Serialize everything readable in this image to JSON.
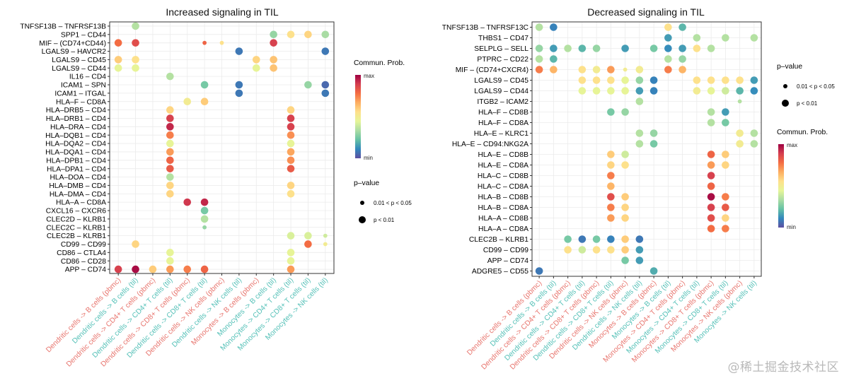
{
  "watermark": "@稀土掘金技术社区",
  "chart_data": [
    {
      "type": "dot",
      "title": "Increased signaling in TIL",
      "x_categories": [
        {
          "label": "Dendritic cells -> B cells (pbmc)",
          "group": "pbmc"
        },
        {
          "label": "Dendritic cells -> B cells (til)",
          "group": "til"
        },
        {
          "label": "Dendritic cells -> CD4+ T cells (pbmc)",
          "group": "pbmc"
        },
        {
          "label": "Dendritic cells -> CD4+ T cells (til)",
          "group": "til"
        },
        {
          "label": "Dendritic cells -> CD8+ T cells (pbmc)",
          "group": "pbmc"
        },
        {
          "label": "Dendritic cells -> CD8+ T cells (til)",
          "group": "til"
        },
        {
          "label": "Dendritic cells -> NK cells (pbmc)",
          "group": "pbmc"
        },
        {
          "label": "Dendritic cells -> NK cells (til)",
          "group": "til"
        },
        {
          "label": "Monocytes -> B cells (pbmc)",
          "group": "pbmc"
        },
        {
          "label": "Monocytes -> B cells (til)",
          "group": "til"
        },
        {
          "label": "Monocytes -> CD4+ T cells (til)",
          "group": "til"
        },
        {
          "label": "Monocytes -> CD8+ T cells (til)",
          "group": "til"
        },
        {
          "label": "Monocytes -> NK cells (til)",
          "group": "til"
        }
      ],
      "y_categories": [
        "TNFSF13B – TNFRSF13B",
        "SPP1 – CD44",
        "MIF – (CD74+CD44)",
        "LGALS9 – HAVCR2",
        "LGALS9 – CD45",
        "LGALS9 – CD44",
        "IL16 – CD4",
        "ICAM1 – SPN",
        "ICAM1 – ITGAL",
        "HLA–F – CD8A",
        "HLA–DRB5 – CD4",
        "HLA–DRB1 – CD4",
        "HLA–DRA – CD4",
        "HLA–DQB1 – CD4",
        "HLA–DQA2 – CD4",
        "HLA–DQA1 – CD4",
        "HLA–DPB1 – CD4",
        "HLA–DPA1 – CD4",
        "HLA–DOA – CD4",
        "HLA–DMB – CD4",
        "HLA–DMA – CD4",
        "HLA–A – CD8A",
        "CXCL16 – CXCR6",
        "CLEC2D – KLRB1",
        "CLEC2C – KLRB1",
        "CLEC2B – KLRB1",
        "CD99 – CD99",
        "CD86 – CTLA4",
        "CD86 – CD28",
        "APP – CD74"
      ],
      "points": [
        [
          0,
          1,
          0.35,
          1
        ],
        [
          1,
          9,
          0.3,
          1
        ],
        [
          1,
          10,
          0.55,
          1
        ],
        [
          1,
          11,
          0.58,
          1
        ],
        [
          1,
          12,
          0.33,
          1
        ],
        [
          2,
          0,
          0.78,
          1
        ],
        [
          2,
          1,
          0.85,
          1
        ],
        [
          2,
          5,
          0.8,
          0
        ],
        [
          2,
          6,
          0.55,
          0
        ],
        [
          2,
          9,
          0.88,
          1
        ],
        [
          3,
          7,
          0.08,
          1
        ],
        [
          3,
          12,
          0.08,
          1
        ],
        [
          4,
          0,
          0.6,
          1
        ],
        [
          4,
          1,
          0.55,
          1
        ],
        [
          4,
          8,
          0.58,
          1
        ],
        [
          4,
          9,
          0.62,
          1
        ],
        [
          5,
          0,
          0.45,
          1
        ],
        [
          5,
          1,
          0.45,
          1
        ],
        [
          5,
          8,
          0.45,
          1
        ],
        [
          5,
          9,
          0.62,
          1
        ],
        [
          6,
          3,
          0.35,
          1
        ],
        [
          7,
          5,
          0.25,
          1
        ],
        [
          7,
          7,
          0.08,
          1
        ],
        [
          7,
          11,
          0.3,
          1
        ],
        [
          7,
          12,
          0.05,
          1
        ],
        [
          8,
          7,
          0.08,
          1
        ],
        [
          8,
          12,
          0.08,
          1
        ],
        [
          9,
          4,
          0.5,
          1
        ],
        [
          9,
          5,
          0.6,
          1
        ],
        [
          10,
          3,
          0.58,
          1
        ],
        [
          10,
          10,
          0.58,
          1
        ],
        [
          11,
          3,
          0.88,
          1
        ],
        [
          11,
          10,
          0.88,
          1
        ],
        [
          12,
          3,
          0.93,
          1
        ],
        [
          12,
          10,
          0.88,
          1
        ],
        [
          13,
          3,
          0.75,
          1
        ],
        [
          13,
          10,
          0.72,
          1
        ],
        [
          14,
          3,
          0.45,
          1
        ],
        [
          14,
          10,
          0.45,
          1
        ],
        [
          15,
          3,
          0.7,
          1
        ],
        [
          15,
          10,
          0.68,
          1
        ],
        [
          16,
          3,
          0.8,
          1
        ],
        [
          16,
          10,
          0.72,
          1
        ],
        [
          17,
          3,
          0.82,
          1
        ],
        [
          17,
          10,
          0.82,
          1
        ],
        [
          18,
          3,
          0.35,
          1
        ],
        [
          19,
          3,
          0.58,
          1
        ],
        [
          19,
          10,
          0.58,
          1
        ],
        [
          20,
          3,
          0.58,
          1
        ],
        [
          20,
          10,
          0.55,
          1
        ],
        [
          21,
          4,
          0.9,
          1
        ],
        [
          21,
          5,
          0.93,
          1
        ],
        [
          22,
          5,
          0.25,
          1
        ],
        [
          23,
          5,
          0.35,
          1
        ],
        [
          24,
          5,
          0.3,
          0
        ],
        [
          25,
          10,
          0.42,
          1
        ],
        [
          25,
          11,
          0.42,
          1
        ],
        [
          25,
          12,
          0.4,
          0
        ],
        [
          26,
          1,
          0.58,
          1
        ],
        [
          26,
          11,
          0.78,
          1
        ],
        [
          26,
          12,
          0.5,
          0
        ],
        [
          27,
          3,
          0.45,
          1
        ],
        [
          27,
          10,
          0.45,
          1
        ],
        [
          28,
          3,
          0.45,
          1
        ],
        [
          28,
          10,
          0.45,
          1
        ],
        [
          29,
          0,
          0.88,
          1
        ],
        [
          29,
          1,
          0.98,
          1
        ],
        [
          29,
          2,
          0.6,
          1
        ],
        [
          29,
          3,
          0.7,
          1
        ],
        [
          29,
          4,
          0.75,
          1
        ],
        [
          29,
          5,
          0.8,
          1
        ],
        [
          29,
          10,
          0.7,
          1
        ]
      ],
      "legend_color": {
        "title": "Commun. Prob.",
        "max": "max",
        "min": "min"
      },
      "legend_size": {
        "title": "p–value",
        "small": "0.01 < p < 0.05",
        "large": "p < 0.01"
      }
    },
    {
      "type": "dot",
      "title": "Decreased signaling in TIL",
      "x_categories": [
        {
          "label": "Dendritic cells -> B cells (pbmc)",
          "group": "pbmc"
        },
        {
          "label": "Dendritic cells -> B cells (til)",
          "group": "til"
        },
        {
          "label": "Dendritic cells -> CD4+ T cells (pbmc)",
          "group": "pbmc"
        },
        {
          "label": "Dendritic cells -> CD4+ T cells (til)",
          "group": "til"
        },
        {
          "label": "Dendritic cells -> CD8+ T cells (pbmc)",
          "group": "pbmc"
        },
        {
          "label": "Dendritic cells -> CD8+ T cells (til)",
          "group": "til"
        },
        {
          "label": "Dendritic cells -> NK cells (pbmc)",
          "group": "pbmc"
        },
        {
          "label": "Dendritic cells -> NK cells (til)",
          "group": "til"
        },
        {
          "label": "Monocytes -> B cells (pbmc)",
          "group": "pbmc"
        },
        {
          "label": "Monocytes -> B cells (til)",
          "group": "til"
        },
        {
          "label": "Monocytes -> CD4+ T cells (pbmc)",
          "group": "pbmc"
        },
        {
          "label": "Monocytes -> CD4+ T cells (til)",
          "group": "til"
        },
        {
          "label": "Monocytes -> CD8+ T cells (pbmc)",
          "group": "pbmc"
        },
        {
          "label": "Monocytes -> CD8+ T cells (til)",
          "group": "til"
        },
        {
          "label": "Monocytes -> NK cells (pbmc)",
          "group": "pbmc"
        },
        {
          "label": "Monocytes -> NK cells (til)",
          "group": "til"
        }
      ],
      "y_categories": [
        "TNFSF13B – TNFRSF13C",
        "THBS1 – CD47",
        "SELPLG – SELL",
        "PTPRC – CD22",
        "MIF – (CD74+CXCR4)",
        "LGALS9 – CD45",
        "LGALS9 – CD44",
        "ITGB2 – ICAM2",
        "HLA–F – CD8B",
        "HLA–F – CD8A",
        "HLA–E – KLRC1",
        "HLA–E – CD94:NKG2A",
        "HLA–E – CD8B",
        "HLA–E – CD8A",
        "HLA–C – CD8B",
        "HLA–C – CD8A",
        "HLA–B – CD8B",
        "HLA–B – CD8A",
        "HLA–A – CD8B",
        "HLA–A – CD8A",
        "CLEC2B – KLRB1",
        "CD99 – CD99",
        "APP – CD74",
        "ADGRE5 – CD55"
      ],
      "points": [
        [
          0,
          0,
          0.35,
          1
        ],
        [
          0,
          1,
          0.1,
          1
        ],
        [
          0,
          9,
          0.55,
          1
        ],
        [
          0,
          10,
          0.2,
          1
        ],
        [
          1,
          9,
          0.15,
          1
        ],
        [
          1,
          11,
          0.35,
          1
        ],
        [
          1,
          13,
          0.35,
          1
        ],
        [
          1,
          15,
          0.35,
          1
        ],
        [
          2,
          0,
          0.3,
          1
        ],
        [
          2,
          1,
          0.15,
          1
        ],
        [
          2,
          2,
          0.35,
          1
        ],
        [
          2,
          3,
          0.2,
          1
        ],
        [
          2,
          4,
          0.3,
          1
        ],
        [
          2,
          6,
          0.15,
          1
        ],
        [
          2,
          8,
          0.25,
          1
        ],
        [
          2,
          9,
          0.12,
          1
        ],
        [
          2,
          10,
          0.15,
          1
        ],
        [
          2,
          11,
          0.55,
          1
        ],
        [
          2,
          12,
          0.35,
          1
        ],
        [
          3,
          0,
          0.35,
          1
        ],
        [
          3,
          1,
          0.2,
          1
        ],
        [
          3,
          9,
          0.35,
          1
        ],
        [
          3,
          10,
          0.3,
          1
        ],
        [
          4,
          0,
          0.75,
          1
        ],
        [
          4,
          1,
          0.65,
          1
        ],
        [
          4,
          3,
          0.55,
          1
        ],
        [
          4,
          4,
          0.5,
          1
        ],
        [
          4,
          5,
          0.7,
          1
        ],
        [
          4,
          6,
          0.5,
          0
        ],
        [
          4,
          7,
          0.5,
          1
        ],
        [
          4,
          9,
          0.75,
          1
        ],
        [
          4,
          10,
          0.65,
          1
        ],
        [
          5,
          3,
          0.55,
          1
        ],
        [
          5,
          4,
          0.55,
          1
        ],
        [
          5,
          5,
          0.55,
          1
        ],
        [
          5,
          6,
          0.45,
          1
        ],
        [
          5,
          7,
          0.3,
          1
        ],
        [
          5,
          8,
          0.1,
          1
        ],
        [
          5,
          11,
          0.55,
          1
        ],
        [
          5,
          12,
          0.55,
          1
        ],
        [
          5,
          13,
          0.55,
          1
        ],
        [
          5,
          14,
          0.55,
          1
        ],
        [
          5,
          15,
          0.15,
          1
        ],
        [
          6,
          3,
          0.45,
          1
        ],
        [
          6,
          4,
          0.45,
          1
        ],
        [
          6,
          5,
          0.45,
          1
        ],
        [
          6,
          6,
          0.45,
          1
        ],
        [
          6,
          7,
          0.15,
          1
        ],
        [
          6,
          8,
          0.1,
          1
        ],
        [
          6,
          11,
          0.5,
          1
        ],
        [
          6,
          12,
          0.45,
          1
        ],
        [
          6,
          13,
          0.4,
          1
        ],
        [
          6,
          14,
          0.2,
          1
        ],
        [
          6,
          15,
          0.12,
          1
        ],
        [
          7,
          7,
          0.35,
          1
        ],
        [
          7,
          14,
          0.35,
          0
        ],
        [
          8,
          5,
          0.25,
          1
        ],
        [
          8,
          6,
          0.3,
          1
        ],
        [
          8,
          12,
          0.35,
          1
        ],
        [
          8,
          13,
          0.15,
          1
        ],
        [
          9,
          12,
          0.35,
          1
        ],
        [
          9,
          13,
          0.25,
          1
        ],
        [
          10,
          7,
          0.35,
          1
        ],
        [
          10,
          8,
          0.3,
          1
        ],
        [
          10,
          14,
          0.5,
          1
        ],
        [
          10,
          15,
          0.35,
          1
        ],
        [
          11,
          7,
          0.35,
          1
        ],
        [
          11,
          8,
          0.25,
          1
        ],
        [
          11,
          14,
          0.5,
          1
        ],
        [
          11,
          15,
          0.35,
          1
        ],
        [
          12,
          5,
          0.6,
          1
        ],
        [
          12,
          6,
          0.4,
          1
        ],
        [
          12,
          12,
          0.8,
          1
        ],
        [
          12,
          13,
          0.6,
          1
        ],
        [
          13,
          5,
          0.58,
          1
        ],
        [
          13,
          6,
          0.55,
          1
        ],
        [
          13,
          12,
          0.7,
          1
        ],
        [
          13,
          13,
          0.58,
          1
        ],
        [
          14,
          5,
          0.75,
          1
        ],
        [
          14,
          12,
          0.88,
          1
        ],
        [
          15,
          5,
          0.65,
          1
        ],
        [
          15,
          12,
          0.8,
          1
        ],
        [
          16,
          5,
          0.85,
          1
        ],
        [
          16,
          6,
          0.6,
          1
        ],
        [
          16,
          12,
          0.98,
          1
        ],
        [
          16,
          13,
          0.75,
          1
        ],
        [
          17,
          5,
          0.75,
          1
        ],
        [
          17,
          6,
          0.58,
          1
        ],
        [
          17,
          12,
          0.88,
          1
        ],
        [
          17,
          13,
          0.82,
          1
        ],
        [
          18,
          5,
          0.7,
          1
        ],
        [
          18,
          6,
          0.58,
          1
        ],
        [
          18,
          12,
          0.85,
          1
        ],
        [
          18,
          13,
          0.58,
          1
        ],
        [
          19,
          12,
          0.78,
          1
        ],
        [
          19,
          13,
          0.75,
          1
        ],
        [
          20,
          2,
          0.25,
          1
        ],
        [
          20,
          3,
          0.08,
          1
        ],
        [
          20,
          4,
          0.25,
          1
        ],
        [
          20,
          5,
          0.1,
          1
        ],
        [
          20,
          6,
          0.6,
          1
        ],
        [
          20,
          7,
          0.08,
          1
        ],
        [
          21,
          2,
          0.55,
          1
        ],
        [
          21,
          3,
          0.4,
          1
        ],
        [
          21,
          4,
          0.55,
          1
        ],
        [
          21,
          5,
          0.55,
          1
        ],
        [
          21,
          6,
          0.6,
          1
        ],
        [
          21,
          7,
          0.15,
          1
        ],
        [
          22,
          6,
          0.25,
          1
        ],
        [
          22,
          7,
          0.15,
          1
        ],
        [
          23,
          0,
          0.08,
          1
        ],
        [
          23,
          8,
          0.18,
          1
        ]
      ],
      "legend_color": {
        "title": "Commun. Prob.",
        "max": "max",
        "min": "min"
      },
      "legend_size": {
        "title": "p–value",
        "small": "0.01 < p < 0.05",
        "large": "p < 0.01"
      }
    }
  ],
  "colors": {
    "pbmc_label": "#e8766f",
    "til_label": "#56c1b8",
    "grid": "#ebebeb",
    "axis": "#333333",
    "spectral": [
      "#5e4fa2",
      "#3288bd",
      "#66c2a5",
      "#abdda4",
      "#e6f598",
      "#fee08b",
      "#fdae61",
      "#f46d43",
      "#d53e4f",
      "#9e0142"
    ]
  }
}
